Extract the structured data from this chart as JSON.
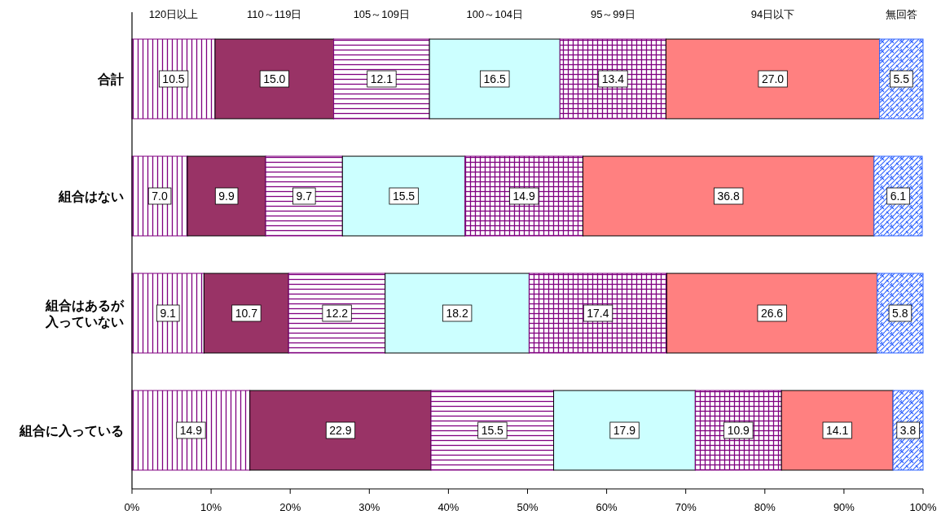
{
  "chart_data": {
    "type": "bar",
    "orientation": "horizontal",
    "stacked": true,
    "legend": "top",
    "grid": false,
    "categories": [
      "合計",
      "組合はない",
      "組合はあるが入っていない",
      "組合に入っている"
    ],
    "series": [
      {
        "name": "120日以上",
        "color": "#800080",
        "values": [
          10.5,
          7.0,
          9.1,
          14.9
        ],
        "value_labels": [
          "10.5",
          "7.0",
          "9.1",
          "14.9"
        ]
      },
      {
        "name": "110～119日",
        "color": "#993366",
        "values": [
          15.0,
          9.9,
          10.7,
          22.9
        ],
        "value_labels": [
          "15.0",
          "9.9",
          "10.7",
          "22.9"
        ]
      },
      {
        "name": "105～109日",
        "color": "#800080",
        "values": [
          12.1,
          9.7,
          12.2,
          15.5
        ],
        "value_labels": [
          "12.1",
          "9.7",
          "12.2",
          "15.5"
        ]
      },
      {
        "name": "100～104日",
        "color": "#ccffff",
        "values": [
          16.5,
          15.5,
          18.2,
          17.9
        ],
        "value_labels": [
          "16.5",
          "15.5",
          "18.2",
          "17.9"
        ]
      },
      {
        "name": "95～99日",
        "color": "#800080",
        "values": [
          13.4,
          14.9,
          17.4,
          10.9
        ],
        "value_labels": [
          "13.4",
          "14.9",
          "17.4",
          "10.9"
        ]
      },
      {
        "name": "94日以下",
        "color": "#ff8080",
        "values": [
          27.0,
          36.8,
          26.6,
          14.1
        ],
        "value_labels": [
          "27.0",
          "36.8",
          "26.6",
          "14.1"
        ]
      },
      {
        "name": "無回答",
        "color": "#3366ff",
        "values": [
          5.5,
          6.1,
          5.8,
          3.8
        ],
        "value_labels": [
          "5.5",
          "6.1",
          "5.8",
          "3.8"
        ]
      }
    ],
    "xlim": [
      0,
      100
    ],
    "xticks": [
      {
        "value": 0,
        "label": "0%"
      },
      {
        "value": 10,
        "label": "10%"
      },
      {
        "value": 20,
        "label": "20%"
      },
      {
        "value": 30,
        "label": "30%"
      },
      {
        "value": 40,
        "label": "40%"
      },
      {
        "value": 50,
        "label": "50%"
      },
      {
        "value": 60,
        "label": "60%"
      },
      {
        "value": 70,
        "label": "70%"
      },
      {
        "value": 80,
        "label": "80%"
      },
      {
        "value": 90,
        "label": "90%"
      },
      {
        "value": 100,
        "label": "100%"
      }
    ]
  }
}
